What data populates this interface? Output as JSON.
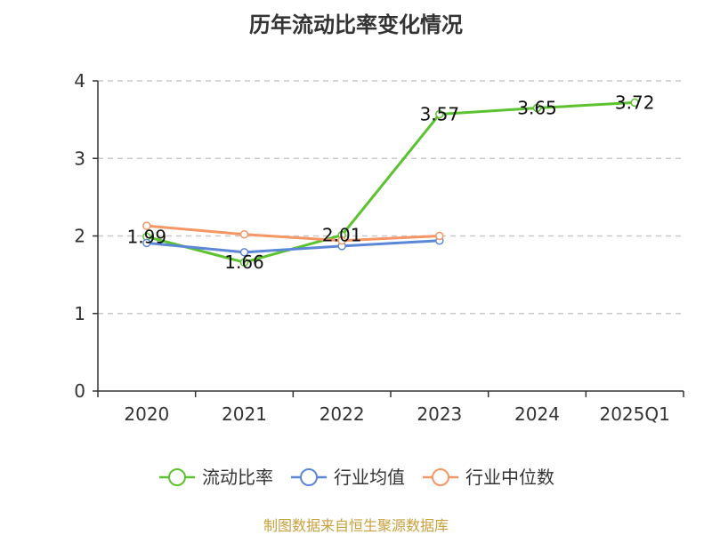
{
  "chart_data": {
    "type": "line",
    "title": "历年流动比率变化情况",
    "categories": [
      "2020",
      "2021",
      "2022",
      "2023",
      "2024",
      "2025Q1"
    ],
    "ylim": [
      0,
      4
    ],
    "yticks": [
      "0",
      "1",
      "2",
      "3",
      "4"
    ],
    "grid": true,
    "legend_position": "bottom",
    "series": [
      {
        "name": "流动比率",
        "color": "#5cc22f",
        "values": [
          1.99,
          1.66,
          2.01,
          3.57,
          3.65,
          3.72
        ],
        "labels": [
          "1.99",
          "1.66",
          "2.01",
          "3.57",
          "3.65",
          "3.72"
        ]
      },
      {
        "name": "行业均值",
        "color": "#5b87d6",
        "values": [
          1.91,
          1.79,
          1.87,
          1.94,
          null,
          null
        ]
      },
      {
        "name": "行业中位数",
        "color": "#f59664",
        "values": [
          2.13,
          2.02,
          1.94,
          2.0,
          null,
          null
        ]
      }
    ]
  },
  "footer": "制图数据来自恒生聚源数据库"
}
